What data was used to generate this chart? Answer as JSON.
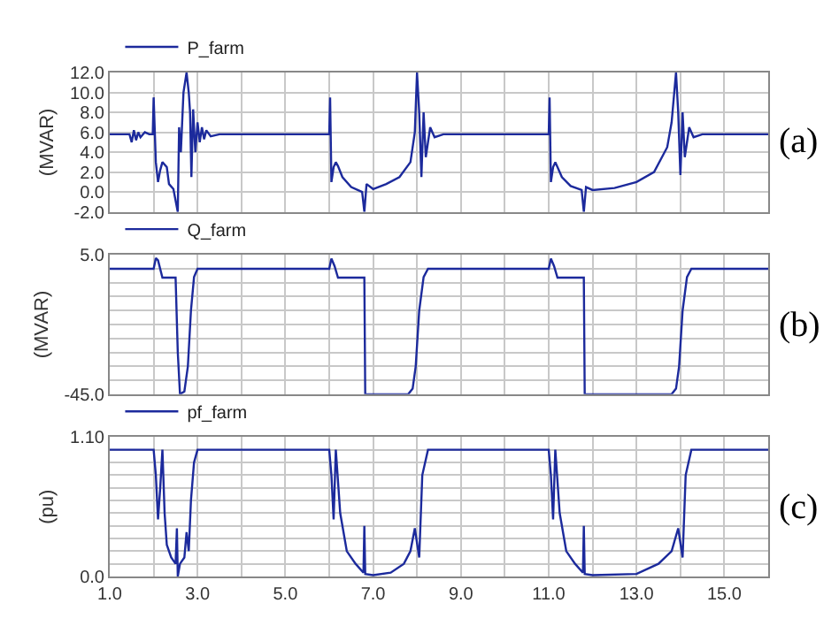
{
  "chart_data": [
    {
      "type": "line",
      "ylabel": "(MVAR)",
      "annotations": [
        "(a)"
      ],
      "legend": "top left",
      "grid": true,
      "tick_labels": "y",
      "xlim": [
        1,
        16
      ],
      "xticks": [
        {
          "value": 1,
          "label": null
        },
        {
          "value": 2,
          "label": null
        },
        {
          "value": 3,
          "label": null
        },
        {
          "value": 4,
          "label": null
        },
        {
          "value": 5,
          "label": null
        },
        {
          "value": 6,
          "label": null
        },
        {
          "value": 7,
          "label": null
        },
        {
          "value": 8,
          "label": null
        },
        {
          "value": 9,
          "label": null
        },
        {
          "value": 10,
          "label": null
        },
        {
          "value": 11,
          "label": null
        },
        {
          "value": 12,
          "label": null
        },
        {
          "value": 13,
          "label": null
        },
        {
          "value": 14,
          "label": null
        },
        {
          "value": 15,
          "label": null
        }
      ],
      "ylim": [
        -2,
        12
      ],
      "yticks": [
        {
          "value": -2,
          "label": "-2.0"
        },
        {
          "value": 0,
          "label": "0.0"
        },
        {
          "value": 2,
          "label": "2.0"
        },
        {
          "value": 4,
          "label": "4.0"
        },
        {
          "value": 6,
          "label": "6.0"
        },
        {
          "value": 8,
          "label": "8.0"
        },
        {
          "value": 10,
          "label": "10.0"
        },
        {
          "value": 12,
          "label": "12.0"
        }
      ],
      "series": [
        {
          "name": "P_farm",
          "color": "#1c2a9c",
          "x": [
            1.0,
            1.45,
            1.5,
            1.55,
            1.6,
            1.65,
            1.7,
            1.8,
            1.9,
            1.98,
            2.0,
            2.05,
            2.1,
            2.15,
            2.2,
            2.3,
            2.35,
            2.45,
            2.55,
            2.58,
            2.62,
            2.68,
            2.75,
            2.8,
            2.83,
            2.86,
            2.9,
            2.95,
            3.0,
            3.05,
            3.1,
            3.15,
            3.2,
            3.3,
            3.5,
            6.0,
            6.02,
            6.05,
            6.1,
            6.15,
            6.2,
            6.3,
            6.5,
            6.75,
            6.8,
            6.85,
            7.0,
            7.3,
            7.6,
            7.85,
            7.95,
            8.0,
            8.05,
            8.1,
            8.15,
            8.2,
            8.3,
            8.4,
            8.6,
            11.0,
            11.02,
            11.05,
            11.1,
            11.15,
            11.2,
            11.3,
            11.5,
            11.75,
            11.8,
            11.85,
            12.0,
            12.5,
            13.0,
            13.4,
            13.7,
            13.8,
            13.9,
            13.95,
            14.0,
            14.05,
            14.1,
            14.2,
            14.3,
            14.5,
            16.0
          ],
          "values": [
            5.8,
            5.8,
            5.0,
            6.2,
            5.2,
            6.0,
            5.5,
            6.0,
            5.8,
            5.8,
            9.5,
            3.0,
            1.0,
            2.2,
            3.0,
            2.5,
            0.8,
            0.3,
            -2.0,
            6.5,
            4.0,
            10.0,
            12.0,
            10.0,
            8.0,
            1.5,
            8.3,
            4.0,
            7.0,
            5.0,
            6.5,
            5.3,
            6.2,
            5.6,
            5.8,
            5.8,
            9.5,
            1.0,
            2.5,
            3.0,
            2.6,
            1.5,
            0.5,
            0.0,
            -2.0,
            0.8,
            0.3,
            0.8,
            1.5,
            3.0,
            6.0,
            12.0,
            8.0,
            1.5,
            8.0,
            3.5,
            6.5,
            5.5,
            5.8,
            5.8,
            9.5,
            1.0,
            2.5,
            3.0,
            2.5,
            1.5,
            0.6,
            0.2,
            -2.0,
            0.5,
            0.2,
            0.4,
            1.0,
            2.0,
            4.5,
            7.0,
            12.0,
            8.0,
            1.7,
            8.0,
            3.5,
            6.5,
            5.5,
            5.8,
            5.8
          ]
        }
      ]
    },
    {
      "type": "line",
      "ylabel": "(MVAR)",
      "annotations": [
        "(b)"
      ],
      "legend": "top left",
      "grid": true,
      "tick_labels": "y",
      "xlim": [
        1,
        16
      ],
      "xticks": [
        {
          "value": 1,
          "label": null
        },
        {
          "value": 2,
          "label": null
        },
        {
          "value": 3,
          "label": null
        },
        {
          "value": 4,
          "label": null
        },
        {
          "value": 5,
          "label": null
        },
        {
          "value": 6,
          "label": null
        },
        {
          "value": 7,
          "label": null
        },
        {
          "value": 8,
          "label": null
        },
        {
          "value": 9,
          "label": null
        },
        {
          "value": 10,
          "label": null
        },
        {
          "value": 11,
          "label": null
        },
        {
          "value": 12,
          "label": null
        },
        {
          "value": 13,
          "label": null
        },
        {
          "value": 14,
          "label": null
        },
        {
          "value": 15,
          "label": null
        }
      ],
      "ylim": [
        -45,
        5
      ],
      "yticks": [
        {
          "value": -45,
          "label": "-45.0"
        },
        {
          "value": -40,
          "label": null
        },
        {
          "value": -35,
          "label": null
        },
        {
          "value": -30,
          "label": null
        },
        {
          "value": -25,
          "label": null
        },
        {
          "value": -20,
          "label": null
        },
        {
          "value": -15,
          "label": null
        },
        {
          "value": -10,
          "label": null
        },
        {
          "value": -5,
          "label": null
        },
        {
          "value": 0,
          "label": null
        },
        {
          "value": 5,
          "label": "5.0"
        }
      ],
      "series": [
        {
          "name": "Q_farm",
          "color": "#1c2a9c",
          "x": [
            1.0,
            2.0,
            2.05,
            2.1,
            2.2,
            2.5,
            2.55,
            2.6,
            2.7,
            2.78,
            2.85,
            2.92,
            3.0,
            6.0,
            6.05,
            6.12,
            6.2,
            6.8,
            6.82,
            7.8,
            7.9,
            7.97,
            8.05,
            8.15,
            8.25,
            11.0,
            11.05,
            11.12,
            11.2,
            11.8,
            11.82,
            13.8,
            13.9,
            13.97,
            14.05,
            14.15,
            14.25,
            16.0
          ],
          "values": [
            0.0,
            0.0,
            3.8,
            3.0,
            -3.2,
            -3.2,
            -30.0,
            -45.0,
            -44.0,
            -35.0,
            -15.0,
            -3.0,
            0.0,
            0.0,
            3.6,
            1.0,
            -3.2,
            -3.2,
            -45.0,
            -45.0,
            -43.0,
            -35.0,
            -15.0,
            -3.0,
            0.0,
            0.0,
            3.6,
            1.0,
            -3.2,
            -3.2,
            -45.0,
            -45.0,
            -43.0,
            -35.0,
            -15.0,
            -3.0,
            0.0,
            0.0
          ]
        }
      ]
    },
    {
      "type": "line",
      "ylabel": "(pu)",
      "annotations": [
        "(c)"
      ],
      "legend": "top left",
      "grid": true,
      "xlim": [
        1,
        16
      ],
      "xticks": [
        {
          "value": 1,
          "label": "1.0"
        },
        {
          "value": 2,
          "label": null
        },
        {
          "value": 3,
          "label": "3.0"
        },
        {
          "value": 4,
          "label": null
        },
        {
          "value": 5,
          "label": "5.0"
        },
        {
          "value": 6,
          "label": null
        },
        {
          "value": 7,
          "label": "7.0"
        },
        {
          "value": 8,
          "label": null
        },
        {
          "value": 9,
          "label": "9.0"
        },
        {
          "value": 10,
          "label": null
        },
        {
          "value": 11,
          "label": "11.0"
        },
        {
          "value": 12,
          "label": null
        },
        {
          "value": 13,
          "label": "13.0"
        },
        {
          "value": 14,
          "label": null
        },
        {
          "value": 15,
          "label": "15.0"
        }
      ],
      "ylim": [
        0,
        1.1
      ],
      "yticks": [
        {
          "value": 0,
          "label": "0.0"
        },
        {
          "value": 0.1,
          "label": null
        },
        {
          "value": 0.2,
          "label": null
        },
        {
          "value": 0.3,
          "label": null
        },
        {
          "value": 0.4,
          "label": null
        },
        {
          "value": 0.5,
          "label": null
        },
        {
          "value": 0.6,
          "label": null
        },
        {
          "value": 0.7,
          "label": null
        },
        {
          "value": 0.8,
          "label": null
        },
        {
          "value": 0.9,
          "label": null
        },
        {
          "value": 1.0,
          "label": null
        },
        {
          "value": 1.1,
          "label": "1.10"
        }
      ],
      "series": [
        {
          "name": "pf_farm",
          "color": "#1c2a9c",
          "x": [
            1.0,
            2.0,
            2.05,
            2.1,
            2.15,
            2.2,
            2.25,
            2.3,
            2.4,
            2.5,
            2.53,
            2.55,
            2.6,
            2.7,
            2.75,
            2.8,
            2.85,
            2.92,
            3.0,
            6.0,
            6.05,
            6.1,
            6.15,
            6.25,
            6.4,
            6.6,
            6.78,
            6.8,
            6.82,
            7.0,
            7.4,
            7.7,
            7.85,
            7.95,
            8.05,
            8.12,
            8.25,
            11.0,
            11.05,
            11.1,
            11.15,
            11.25,
            11.4,
            11.6,
            11.78,
            11.8,
            11.82,
            12.0,
            13.0,
            13.5,
            13.8,
            13.95,
            14.05,
            14.12,
            14.25,
            16.0
          ],
          "values": [
            1.0,
            1.0,
            0.8,
            0.45,
            0.7,
            1.0,
            0.5,
            0.25,
            0.15,
            0.1,
            0.38,
            0.0,
            0.1,
            0.15,
            0.35,
            0.2,
            0.6,
            0.9,
            1.0,
            1.0,
            0.8,
            0.45,
            1.0,
            0.5,
            0.2,
            0.1,
            0.03,
            0.4,
            0.02,
            0.01,
            0.03,
            0.1,
            0.2,
            0.38,
            0.15,
            0.8,
            1.0,
            1.0,
            0.8,
            0.45,
            1.0,
            0.5,
            0.2,
            0.1,
            0.03,
            0.4,
            0.02,
            0.01,
            0.02,
            0.1,
            0.2,
            0.38,
            0.15,
            0.8,
            1.0,
            1.0
          ]
        }
      ]
    }
  ]
}
